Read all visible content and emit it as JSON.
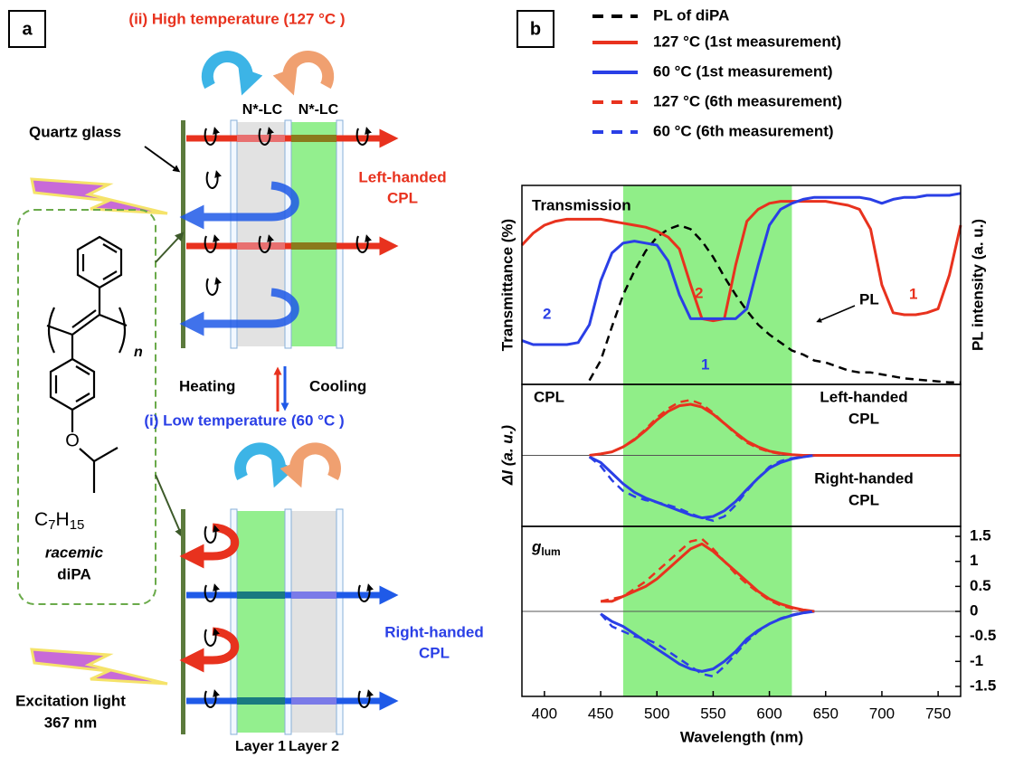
{
  "panel_a": {
    "label": "a",
    "high_title": "(ii) High  temperature (127 °C )",
    "lc_left": "N*-LC",
    "lc_right": "N*-LC",
    "quartz": "Quartz glass",
    "left_cpl": [
      "Left-handed",
      "CPL"
    ],
    "heating": "Heating",
    "cooling": "Cooling",
    "low_title": "(i) Low  temperature (60 °C )",
    "right_cpl": [
      "Right-handed",
      "CPL"
    ],
    "excitation": [
      "Excitation light",
      "367 nm"
    ],
    "layers": [
      "Layer 1",
      "Layer 2"
    ],
    "molecule": {
      "repeat": "n",
      "formula": [
        "C",
        "7",
        "H",
        "15"
      ],
      "racemic": "racemic",
      "name": "diPA"
    }
  },
  "panel_b_label": "b",
  "chart_data": [
    {
      "type": "line",
      "ylabel": "Transmittance (%)",
      "y2label": "PL intensity (a. u.)",
      "annotations": [
        "Transmission",
        "PL",
        "1",
        "2",
        "1",
        "2"
      ],
      "xlim": [
        380,
        770
      ],
      "ylim": [
        0,
        100
      ],
      "y2lim": [
        0,
        100
      ],
      "highlight": [
        470,
        620
      ],
      "x": [
        380,
        390,
        400,
        410,
        420,
        430,
        440,
        450,
        460,
        470,
        480,
        490,
        500,
        510,
        520,
        530,
        540,
        550,
        560,
        570,
        580,
        590,
        600,
        610,
        620,
        630,
        640,
        650,
        660,
        670,
        680,
        690,
        700,
        710,
        720,
        730,
        740,
        750,
        760,
        770
      ],
      "series": [
        {
          "name": "PL of diPA",
          "color": "#000000",
          "dashed": true,
          "axis": "y2",
          "values": [
            null,
            null,
            null,
            null,
            null,
            null,
            2,
            12,
            29,
            45,
            57,
            67,
            74,
            78,
            80,
            78,
            72,
            64,
            54,
            45,
            37,
            30,
            25,
            21,
            17,
            15,
            12,
            11,
            9,
            7,
            6,
            6,
            5,
            4,
            3,
            2.5,
            2,
            1.5,
            1,
            1
          ]
        },
        {
          "name": "127 °C (1st measurement)",
          "color": "#e8321e",
          "dashed": false,
          "values": [
            70,
            76,
            80,
            82,
            83,
            83,
            83,
            83,
            82,
            81,
            80,
            79,
            77,
            74,
            68,
            50,
            33,
            32,
            33,
            60,
            82,
            88,
            91,
            92,
            92,
            92,
            92,
            92,
            91,
            90,
            88,
            78,
            50,
            36,
            35,
            35,
            36,
            38,
            55,
            80
          ]
        },
        {
          "name": "60 °C (1st measurement)",
          "color": "#2a3fe6",
          "dashed": false,
          "values": [
            22,
            20,
            20,
            20,
            20,
            21,
            30,
            52,
            66,
            71,
            72,
            71,
            70,
            62,
            45,
            33,
            33,
            33,
            33,
            33,
            38,
            60,
            80,
            88,
            91,
            93,
            94,
            94,
            94,
            94,
            94,
            93,
            91,
            93,
            94,
            94,
            95,
            95,
            95,
            96
          ]
        }
      ]
    },
    {
      "type": "line",
      "ylabel": "ΔI  (a. u.)",
      "annotations": [
        "CPL",
        "Left-handed",
        "CPL",
        "Right-handed",
        "CPL"
      ],
      "xlim": [
        380,
        770
      ],
      "ylim": [
        -100,
        100
      ],
      "x": [
        440,
        450,
        460,
        470,
        480,
        490,
        500,
        510,
        520,
        530,
        540,
        550,
        560,
        570,
        580,
        590,
        600,
        610,
        620,
        630,
        640,
        650,
        660,
        670,
        680,
        690,
        700,
        710,
        720,
        730,
        740,
        750,
        760,
        770
      ],
      "series": [
        {
          "color": "#e8321e",
          "dashed": false,
          "values": [
            0,
            2,
            5,
            12,
            22,
            35,
            50,
            62,
            70,
            72,
            68,
            58,
            45,
            32,
            20,
            12,
            6,
            3,
            1,
            0,
            0,
            0,
            0,
            0,
            0,
            0,
            0,
            0,
            0,
            0,
            0,
            0,
            0,
            0
          ]
        },
        {
          "color": "#2a3fe6",
          "dashed": false,
          "values": [
            -2,
            -10,
            -25,
            -40,
            -52,
            -60,
            -66,
            -72,
            -78,
            -84,
            -88,
            -86,
            -78,
            -65,
            -48,
            -32,
            -18,
            -10,
            -5,
            -2,
            0,
            null,
            null,
            null,
            null,
            null,
            null,
            null,
            null,
            null,
            null,
            null,
            null,
            null
          ]
        },
        {
          "name": "127 °C (6th measurement)",
          "color": "#e8321e",
          "dashed": true,
          "values": [
            0,
            2,
            5,
            12,
            23,
            37,
            53,
            66,
            75,
            78,
            72,
            60,
            45,
            30,
            18,
            10,
            5,
            2,
            1,
            0,
            0,
            null,
            null,
            null,
            null,
            null,
            null,
            null,
            null,
            null,
            null,
            null,
            null,
            null
          ]
        },
        {
          "name": "60 °C (6th measurement)",
          "color": "#2a3fe6",
          "dashed": true,
          "values": [
            -2,
            -15,
            -35,
            -50,
            -58,
            -63,
            -66,
            -70,
            -75,
            -82,
            -88,
            -92,
            -86,
            -70,
            -50,
            -32,
            -16,
            -8,
            -4,
            -2,
            0,
            null,
            null,
            null,
            null,
            null,
            null,
            null,
            null,
            null,
            null,
            null,
            null,
            null
          ]
        }
      ]
    },
    {
      "type": "line",
      "ylabel": "g",
      "ylabel_sub": "lum",
      "xlabel": "Wavelength (nm)",
      "xlim": [
        380,
        770
      ],
      "xticks": [
        400,
        450,
        500,
        550,
        600,
        650,
        700,
        750
      ],
      "ylim": [
        -1.7,
        1.7
      ],
      "yticks": [
        1.5,
        1,
        0.5,
        0,
        -0.5,
        -1,
        -1.5
      ],
      "x": [
        450,
        460,
        470,
        480,
        490,
        500,
        510,
        520,
        530,
        540,
        550,
        560,
        570,
        580,
        590,
        600,
        610,
        620,
        630,
        640
      ],
      "series": [
        {
          "color": "#e8321e",
          "dashed": false,
          "values": [
            0.2,
            0.2,
            0.3,
            0.4,
            0.5,
            0.65,
            0.85,
            1.05,
            1.25,
            1.35,
            1.2,
            1,
            0.8,
            0.6,
            0.4,
            0.25,
            0.15,
            0.08,
            0.03,
            0
          ]
        },
        {
          "color": "#2a3fe6",
          "dashed": false,
          "values": [
            -0.05,
            -0.2,
            -0.3,
            -0.45,
            -0.6,
            -0.75,
            -0.9,
            -1.05,
            -1.15,
            -1.2,
            -1.15,
            -1,
            -0.8,
            -0.55,
            -0.38,
            -0.25,
            -0.15,
            -0.08,
            -0.03,
            0
          ]
        },
        {
          "color": "#e8321e",
          "dashed": true,
          "values": [
            0.2,
            0.25,
            0.3,
            0.45,
            0.6,
            0.8,
            1,
            1.2,
            1.4,
            1.45,
            1.25,
            1,
            0.75,
            0.55,
            0.38,
            0.22,
            0.12,
            0.06,
            0.02,
            0
          ]
        },
        {
          "color": "#2a3fe6",
          "dashed": true,
          "values": [
            -0.05,
            -0.3,
            -0.4,
            -0.5,
            -0.55,
            -0.65,
            -0.8,
            -0.95,
            -1.1,
            -1.25,
            -1.3,
            -1.1,
            -0.85,
            -0.6,
            -0.4,
            -0.25,
            -0.14,
            -0.07,
            -0.02,
            0
          ]
        }
      ]
    }
  ]
}
